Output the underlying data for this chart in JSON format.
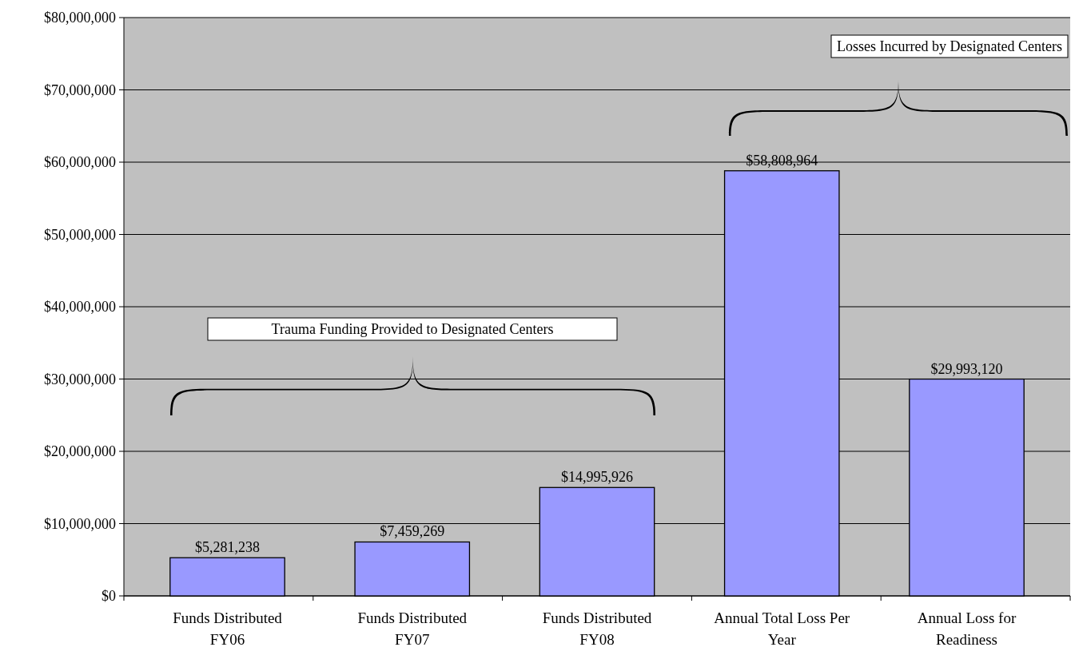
{
  "chart_data": {
    "type": "bar",
    "categories": [
      "Funds Distributed FY06",
      "Funds Distributed FY07",
      "Funds Distributed FY08",
      "Annual Total Loss Per Year",
      "Annual Loss for Readiness"
    ],
    "values": [
      5281238,
      7459269,
      14995926,
      58808964,
      29993120
    ],
    "value_labels": [
      "$5,281,238",
      "$7,459,269",
      "$14,995,926",
      "$58,808,964",
      "$29,993,120"
    ],
    "color": "#9999ff",
    "ylim": [
      0,
      80000000
    ],
    "yticks": [
      {
        "value": 0,
        "label": "$0"
      },
      {
        "value": 10000000,
        "label": "$10,000,000"
      },
      {
        "value": 20000000,
        "label": "$20,000,000"
      },
      {
        "value": 30000000,
        "label": "$30,000,000"
      },
      {
        "value": 40000000,
        "label": "$40,000,000"
      },
      {
        "value": 50000000,
        "label": "$50,000,000"
      },
      {
        "value": 60000000,
        "label": "$60,000,000"
      },
      {
        "value": 70000000,
        "label": "$70,000,000"
      },
      {
        "value": 80000000,
        "label": "$80,000,000"
      }
    ],
    "grid": "y",
    "legend": false,
    "annotations": [
      "Trauma Funding Provided to Designated Centers",
      "Losses Incurred by Designated Centers"
    ]
  }
}
